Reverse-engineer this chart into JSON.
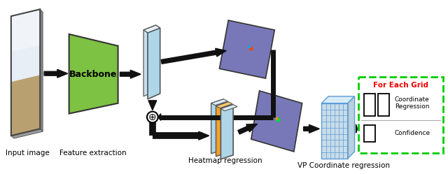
{
  "labels": {
    "input": "Input image",
    "feature": "Feature extraction",
    "heatmap": "Heatmap regression",
    "vp": "VP Coordinate regression"
  },
  "for_each_grid_title": "For Each Grid",
  "coord_reg_label": "Coordinate\nRegression",
  "confidence_label": "Confidence",
  "backbone_label": "Backbone",
  "plus_symbol": "⊕",
  "bg_color": "#ffffff",
  "green_fill": "#7dc242",
  "light_blue_fill": "#aed6e8",
  "light_blue_fill2": "#c8e0ee",
  "orange_fill": "#f5a028",
  "purple_fill": "#7878b8",
  "grid_front_color": "#c8dce8",
  "grid_line_color": "#5b9bd5",
  "dashed_box_color": "#00cc00",
  "arrow_color": "#111111",
  "text_color": "#000000",
  "red_text_color": "#ee0000"
}
